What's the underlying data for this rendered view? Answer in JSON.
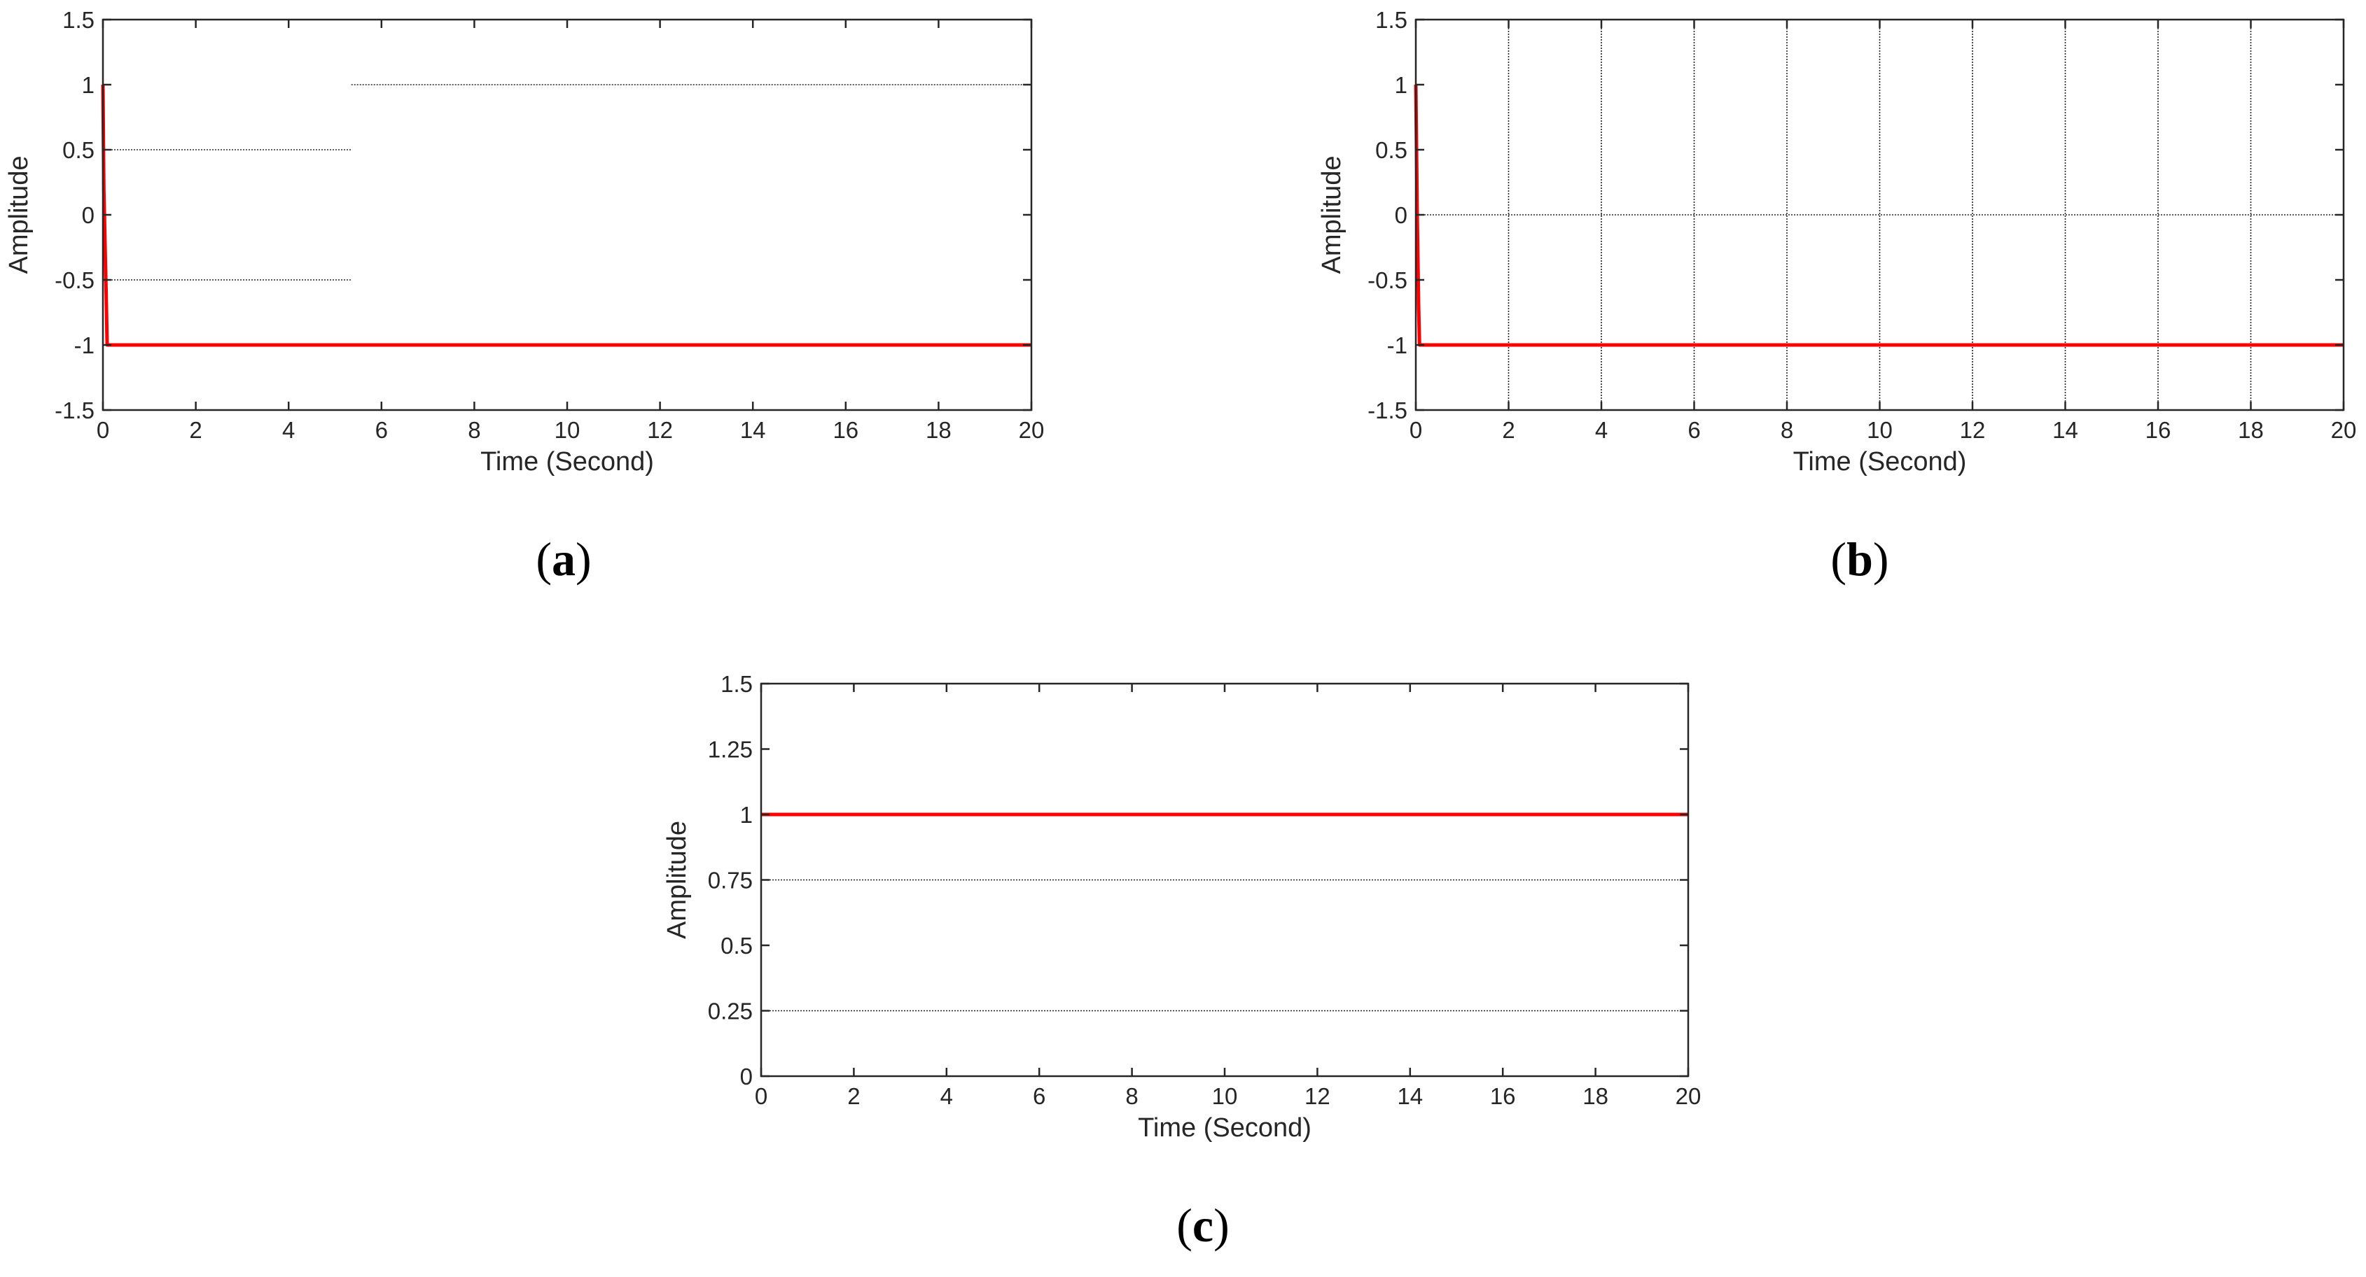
{
  "chart_data": [
    {
      "type": "line",
      "caption": "a",
      "xlabel": "Time (Second)",
      "ylabel": "Amplitude",
      "xlim": [
        0,
        20
      ],
      "ylim": [
        -1.5,
        1.5
      ],
      "x_ticks": [
        "0",
        "2",
        "4",
        "6",
        "8",
        "10",
        "12",
        "14",
        "16",
        "18",
        "20"
      ],
      "y_ticks": [
        "-1.5",
        "-1",
        "-0.5",
        "0",
        "0.5",
        "1",
        "1.5"
      ],
      "reference_lines": [
        {
          "y": 0.5,
          "x": [
            0,
            5.35
          ]
        },
        {
          "y": -0.5,
          "x": [
            0,
            5.35
          ]
        },
        {
          "y": 1,
          "x": [
            5.35,
            20
          ]
        }
      ],
      "series": [
        {
          "color": "#ff0000",
          "x": [
            0,
            0.02,
            0.05,
            0.07,
            0.09,
            20
          ],
          "y": [
            1,
            0.2,
            -0.3,
            -0.6,
            -1,
            -1
          ]
        }
      ]
    },
    {
      "type": "line",
      "caption": "b",
      "xlabel": "Time (Second)",
      "ylabel": "Amplitude",
      "xlim": [
        0,
        20
      ],
      "ylim": [
        -1.5,
        1.5
      ],
      "x_ticks": [
        "0",
        "2",
        "4",
        "6",
        "8",
        "10",
        "12",
        "14",
        "16",
        "18",
        "20"
      ],
      "y_ticks": [
        "-1.5",
        "-1",
        "-0.5",
        "0",
        "0.5",
        "1",
        "1.5"
      ],
      "grid_vertical_x": [
        2,
        4,
        6,
        8,
        10,
        12,
        14,
        16,
        18
      ],
      "reference_lines": [
        {
          "y": 0,
          "x": [
            0,
            20
          ]
        }
      ],
      "series": [
        {
          "color": "#ff0000",
          "x": [
            0,
            0.03,
            0.06,
            0.08,
            20
          ],
          "y": [
            1,
            0,
            -0.7,
            -1,
            -1
          ]
        }
      ]
    },
    {
      "type": "line",
      "caption": "c",
      "xlabel": "Time (Second)",
      "ylabel": "Amplitude",
      "xlim": [
        0,
        20
      ],
      "ylim": [
        0,
        1.5
      ],
      "x_ticks": [
        "0",
        "2",
        "4",
        "6",
        "8",
        "10",
        "12",
        "14",
        "16",
        "18",
        "20"
      ],
      "y_ticks": [
        "0",
        "0.25",
        "0.5",
        "0.75",
        "1",
        "1.25",
        "1.5"
      ],
      "reference_lines": [
        {
          "y": 0.75,
          "x": [
            0,
            20
          ]
        },
        {
          "y": 0.25,
          "x": [
            0,
            20
          ]
        }
      ],
      "series": [
        {
          "color": "#ff0000",
          "x": [
            0,
            20
          ],
          "y": [
            1,
            1
          ]
        }
      ]
    }
  ]
}
